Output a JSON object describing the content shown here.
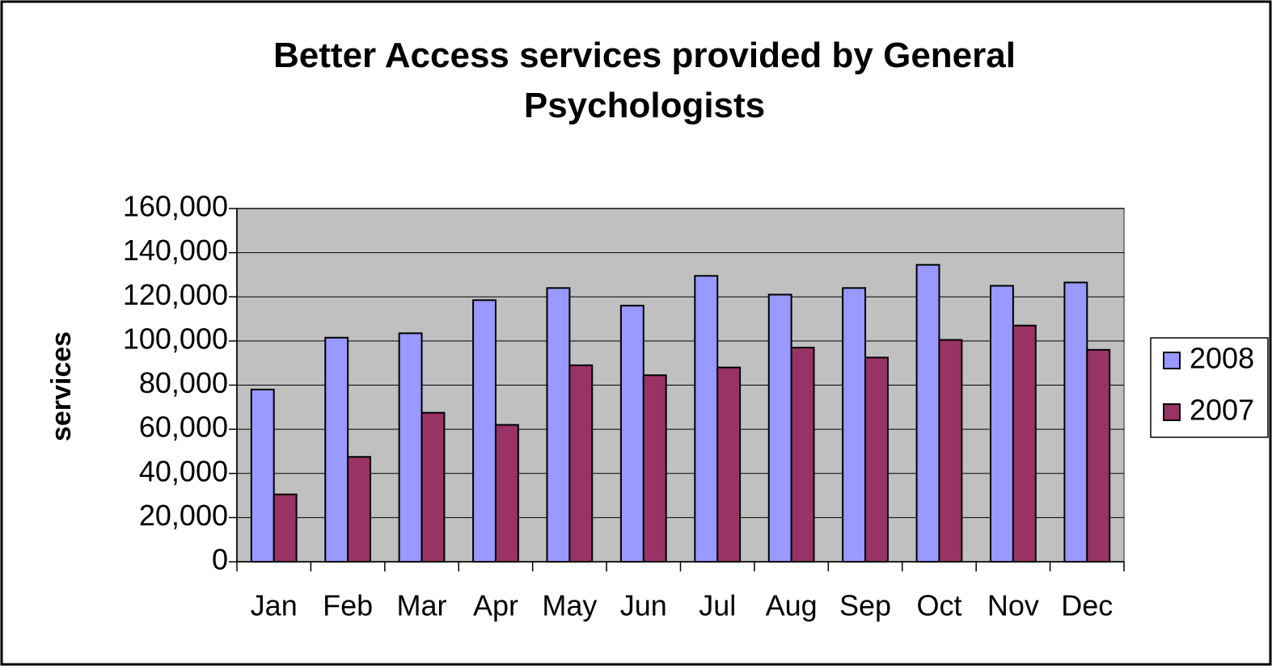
{
  "chart_data": {
    "type": "bar",
    "title": "Better Access services provided by General Psychologists",
    "y_label": "services",
    "categories": [
      "Jan",
      "Feb",
      "Mar",
      "Apr",
      "May",
      "Jun",
      "Jul",
      "Aug",
      "Sep",
      "Oct",
      "Nov",
      "Dec"
    ],
    "series": [
      {
        "name": "2008",
        "color": "#9999ff",
        "values": [
          78000,
          101500,
          103500,
          118500,
          124000,
          116000,
          129500,
          121000,
          124000,
          134500,
          125000,
          126500
        ]
      },
      {
        "name": "2007",
        "color": "#993366",
        "values": [
          30500,
          47500,
          67500,
          62000,
          89000,
          84500,
          88000,
          97000,
          92500,
          100500,
          107000,
          96000
        ]
      }
    ],
    "ylim": [
      0,
      160000
    ],
    "yticks": [
      0,
      {
        "value": 20000,
        "label": "20,000"
      },
      {
        "value": 40000,
        "label": "40,000"
      },
      {
        "value": 60000,
        "label": "60,000"
      },
      {
        "value": 80000,
        "label": "80,000"
      },
      {
        "value": 100000,
        "label": "100,000"
      },
      {
        "value": 120000,
        "label": "120,000"
      },
      {
        "value": 140000,
        "label": "140,000"
      },
      {
        "value": 160000,
        "label": "160,000"
      }
    ],
    "grid": true,
    "plot_background": "#c0c0c0",
    "legend": "right"
  }
}
